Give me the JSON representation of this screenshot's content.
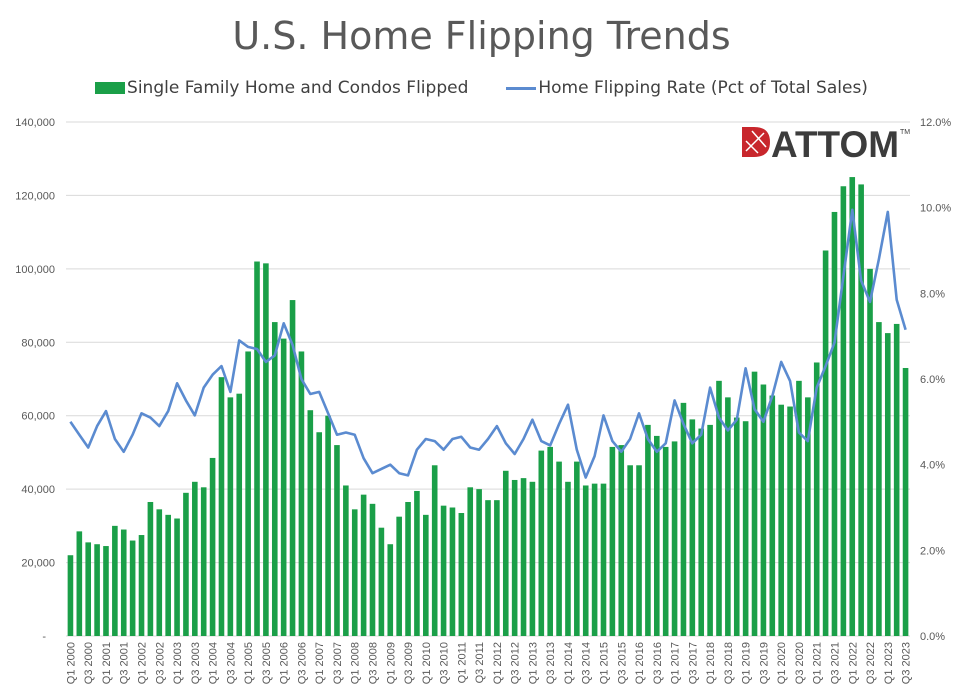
{
  "chart_data": {
    "type": "bar+line",
    "title": "U.S. Home Flipping Trends",
    "legend_position": "top",
    "colors": {
      "bars": "#1a9f48",
      "line": "#5b8bd0",
      "grid": "#d9d9d9"
    },
    "logo_text": "ATTOM",
    "x_tick_labels": [
      "Q1 2000",
      "Q3 2000",
      "Q1 2001",
      "Q3 2001",
      "Q1 2002",
      "Q3 2002",
      "Q1 2003",
      "Q3 2003",
      "Q1 2004",
      "Q3 2004",
      "Q1 2005",
      "Q3 2005",
      "Q1 2006",
      "Q3 2006",
      "Q1 2007",
      "Q3 2007",
      "Q1 2008",
      "Q3 2008",
      "Q1 2009",
      "Q3 2009",
      "Q1 2010",
      "Q3 2010",
      "Q1 2011",
      "Q3 2011",
      "Q1 2012",
      "Q3 2012",
      "Q1 2013",
      "Q3 2013",
      "Q1 2014",
      "Q3 2014",
      "Q1 2015",
      "Q3 2015",
      "Q1 2016",
      "Q3 2016",
      "Q1 2017",
      "Q3 2017",
      "Q1 2018",
      "Q3 2018",
      "Q1 2019",
      "Q3 2019",
      "Q1 2020",
      "Q3 2020",
      "Q1 2021",
      "Q3 2021",
      "Q1 2022",
      "Q3 2022",
      "Q1 2023",
      "Q3 2023"
    ],
    "y_left": {
      "ticks": [
        "-",
        "20,000",
        "40,000",
        "60,000",
        "80,000",
        "100,000",
        "120,000",
        "140,000"
      ],
      "range": [
        0,
        140000
      ]
    },
    "y_right": {
      "ticks": [
        "0.0%",
        "2.0%",
        "4.0%",
        "6.0%",
        "8.0%",
        "10.0%",
        "12.0%"
      ],
      "range": [
        0,
        12
      ]
    },
    "series": [
      {
        "name": "Single Family Home and Condos Flipped",
        "type": "bar",
        "axis": "left",
        "values": [
          22000,
          28500,
          25500,
          25000,
          24500,
          30000,
          29000,
          26000,
          27500,
          36500,
          34500,
          33000,
          32000,
          39000,
          42000,
          40500,
          48500,
          70500,
          65000,
          66000,
          77500,
          102000,
          101500,
          85500,
          81000,
          91500,
          77500,
          61500,
          55500,
          60000,
          52000,
          41000,
          34500,
          38500,
          36000,
          29500,
          25000,
          32500,
          36500,
          39500,
          33000,
          46500,
          35500,
          35000,
          33500,
          40500,
          40000,
          37000,
          37000,
          45000,
          42500,
          43000,
          42000,
          50500,
          51500,
          47500,
          42000,
          47500,
          41000,
          41500,
          41500,
          51500,
          52000,
          46500,
          46500,
          57500,
          54500,
          51500,
          53000,
          63500,
          59000,
          56500,
          57500,
          69500,
          65000,
          59500,
          58500,
          72000,
          68500,
          65500,
          63000,
          62500,
          69500,
          65000,
          74500,
          105000,
          115500,
          122500,
          125000,
          123000,
          100000,
          85500,
          82500,
          85000,
          73000
        ]
      },
      {
        "name": "Home Flipping Rate (Pct of Total Sales)",
        "type": "line",
        "axis": "right",
        "values": [
          5.0,
          4.7,
          4.4,
          4.9,
          5.25,
          4.6,
          4.3,
          4.7,
          5.2,
          5.1,
          4.9,
          5.25,
          5.9,
          5.5,
          5.15,
          5.8,
          6.1,
          6.3,
          5.7,
          6.9,
          6.75,
          6.7,
          6.4,
          6.55,
          7.3,
          6.8,
          6.0,
          5.65,
          5.7,
          5.2,
          4.7,
          4.75,
          4.7,
          4.15,
          3.8,
          3.9,
          4.0,
          3.8,
          3.75,
          4.35,
          4.6,
          4.55,
          4.35,
          4.6,
          4.65,
          4.4,
          4.35,
          4.6,
          4.9,
          4.5,
          4.25,
          4.6,
          5.05,
          4.55,
          4.45,
          4.95,
          5.4,
          4.35,
          3.7,
          4.2,
          5.15,
          4.55,
          4.3,
          4.6,
          5.2,
          4.6,
          4.3,
          4.5,
          5.5,
          4.95,
          4.5,
          4.7,
          5.8,
          5.1,
          4.8,
          5.05,
          6.25,
          5.3,
          5.0,
          5.6,
          6.4,
          5.95,
          4.75,
          4.55,
          5.8,
          6.3,
          6.85,
          8.4,
          9.95,
          8.3,
          7.8,
          8.8,
          9.9,
          7.85,
          7.15
        ]
      }
    ]
  }
}
